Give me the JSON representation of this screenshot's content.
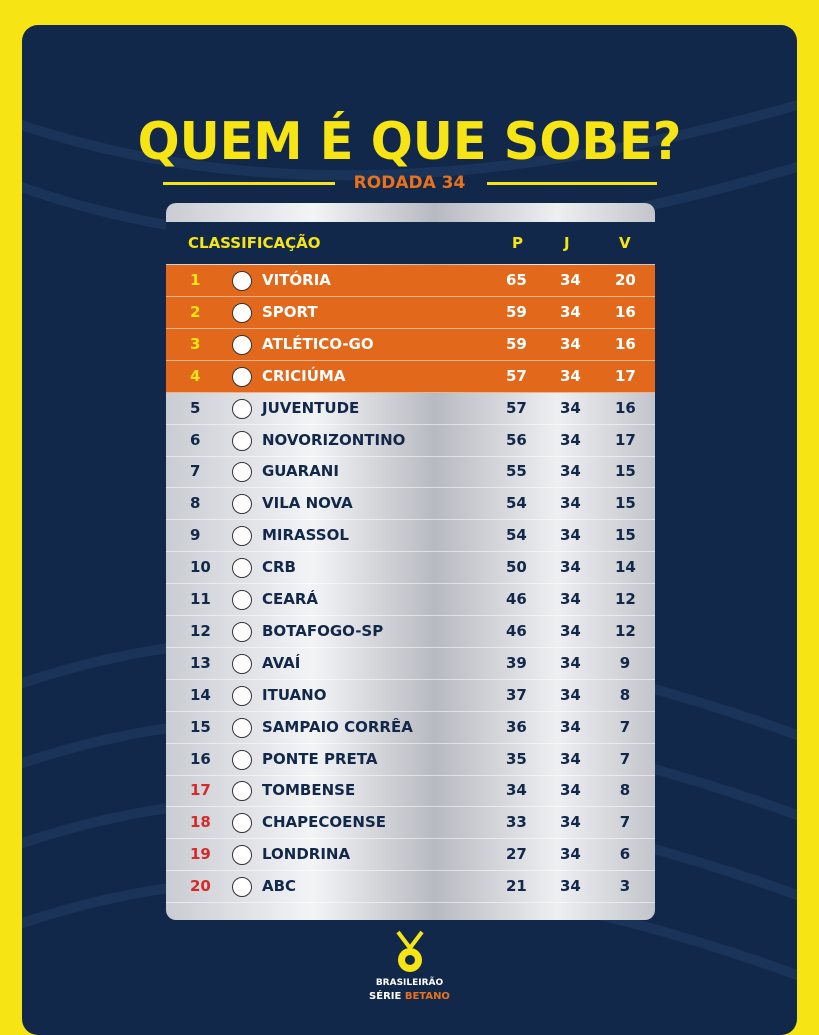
{
  "header": {
    "title": "QUEM É QUE SOBE?",
    "subtitle": "RODADA 34"
  },
  "table": {
    "columns": [
      "CLASSIFICAÇÃO",
      "P",
      "J",
      "V"
    ],
    "rows": [
      [
        1,
        "VITÓRIA",
        65,
        34,
        20
      ],
      [
        2,
        "SPORT",
        59,
        34,
        16
      ],
      [
        3,
        "ATLÉTICO-GO",
        59,
        34,
        16
      ],
      [
        4,
        "CRICIÚMA",
        57,
        34,
        17
      ],
      [
        5,
        "JUVENTUDE",
        57,
        34,
        16
      ],
      [
        6,
        "NOVORIZONTINO",
        56,
        34,
        17
      ],
      [
        7,
        "GUARANI",
        55,
        34,
        15
      ],
      [
        8,
        "VILA NOVA",
        54,
        34,
        15
      ],
      [
        9,
        "MIRASSOL",
        54,
        34,
        15
      ],
      [
        10,
        "CRB",
        50,
        34,
        14
      ],
      [
        11,
        "CEARÁ",
        46,
        34,
        12
      ],
      [
        12,
        "BOTAFOGO-SP",
        46,
        34,
        12
      ],
      [
        13,
        "AVAÍ",
        39,
        34,
        9
      ],
      [
        14,
        "ITUANO",
        37,
        34,
        8
      ],
      [
        15,
        "SAMPAIO CORRÊA",
        36,
        34,
        7
      ],
      [
        16,
        "PONTE PRETA",
        35,
        34,
        7
      ],
      [
        17,
        "TOMBENSE",
        34,
        34,
        8
      ],
      [
        18,
        "CHAPECOENSE",
        33,
        34,
        7
      ],
      [
        19,
        "LONDRINA",
        27,
        34,
        6
      ],
      [
        20,
        "ABC",
        21,
        34,
        3
      ]
    ]
  },
  "footer": {
    "brand": "BRASILEIRÃO",
    "series": "SÉRIE",
    "sponsor": "BETANO"
  }
}
